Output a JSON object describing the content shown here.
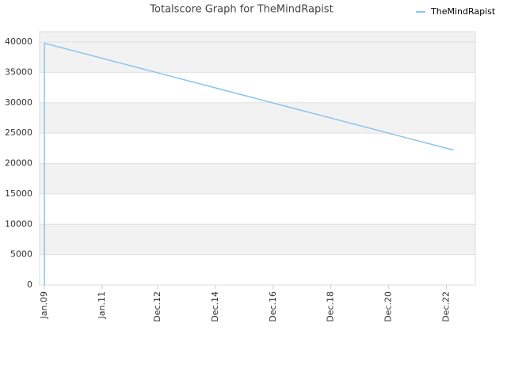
{
  "chart_data": {
    "type": "line",
    "title": "Totalscore Graph for TheMindRapist",
    "x": [
      "2009-01",
      "2009-01",
      "2023-03"
    ],
    "series": [
      {
        "name": "TheMindRapist",
        "color": "#88c4f0",
        "values": [
          0,
          39800,
          22200
        ]
      }
    ],
    "xlim": [
      "2008-11",
      "2023-12"
    ],
    "xticks": [
      {
        "value": "2009-01",
        "label": "Jan.09"
      },
      {
        "value": "2011-01",
        "label": "Jan.11"
      },
      {
        "value": "2012-12",
        "label": "Dec.12"
      },
      {
        "value": "2014-12",
        "label": "Dec.14"
      },
      {
        "value": "2016-12",
        "label": "Dec.16"
      },
      {
        "value": "2018-12",
        "label": "Dec.18"
      },
      {
        "value": "2020-12",
        "label": "Dec.20"
      },
      {
        "value": "2022-12",
        "label": "Dec.22"
      }
    ],
    "ylim": [
      0,
      41700
    ],
    "yticks": [
      0,
      5000,
      10000,
      15000,
      20000,
      25000,
      30000,
      35000,
      40000
    ],
    "grid": true,
    "legend": "top-right"
  }
}
